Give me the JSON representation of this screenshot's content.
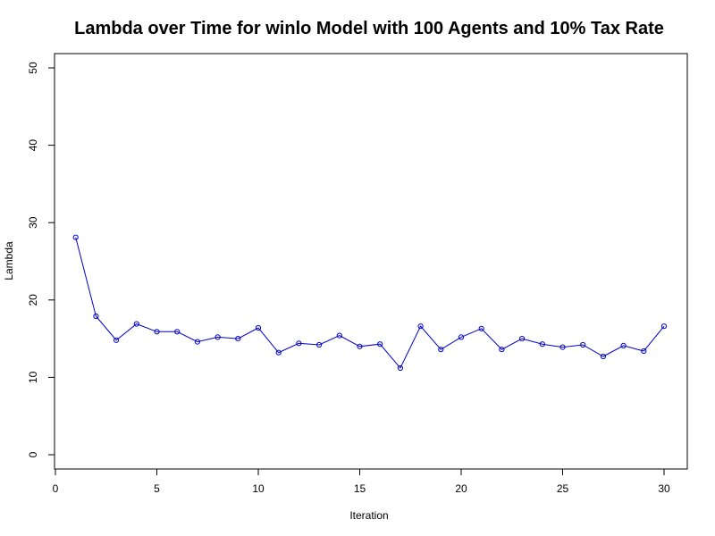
{
  "chart_data": {
    "type": "line",
    "title": "Lambda over Time for winlo Model with 100 Agents and 10% Tax Rate",
    "xlabel": "Iteration",
    "ylabel": "Lambda",
    "xlim": [
      1,
      30
    ],
    "ylim": [
      0,
      50
    ],
    "xticks": [
      0,
      5,
      10,
      15,
      20,
      25,
      30
    ],
    "yticks": [
      0,
      10,
      20,
      30,
      40,
      50
    ],
    "grid": false,
    "legend": "none",
    "series": [
      {
        "color": "#0000cc",
        "marker": "open-circle",
        "x": [
          1,
          2,
          3,
          4,
          5,
          6,
          7,
          8,
          9,
          10,
          11,
          12,
          13,
          14,
          15,
          16,
          17,
          18,
          19,
          20,
          21,
          22,
          23,
          24,
          25,
          26,
          27,
          28,
          29,
          30
        ],
        "values": [
          28.1,
          17.9,
          14.8,
          16.9,
          15.9,
          15.9,
          14.6,
          15.2,
          15.0,
          16.4,
          13.2,
          14.4,
          14.2,
          15.4,
          14.0,
          14.3,
          11.2,
          16.6,
          13.6,
          15.2,
          16.3,
          13.6,
          15.0,
          14.3,
          13.9,
          14.2,
          12.7,
          14.1,
          13.4,
          16.6
        ]
      }
    ]
  }
}
